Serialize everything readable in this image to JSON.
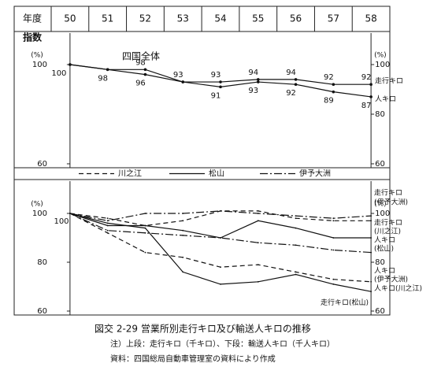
{
  "header": {
    "corner": "年度",
    "index_label": "指数"
  },
  "chart_data": [
    {
      "type": "line",
      "annotation": "四国全体",
      "unit_label": "(%)",
      "categories": [
        "50",
        "51",
        "52",
        "53",
        "54",
        "55",
        "56",
        "57",
        "58"
      ],
      "ylim": [
        60,
        100
      ],
      "yticks": [
        60,
        100
      ],
      "y2lim": [
        60,
        100
      ],
      "y2ticks": [
        60,
        80,
        100
      ],
      "series": [
        {
          "name": "走行キロ",
          "color": "#111111",
          "values": [
            100,
            98,
            98,
            93,
            93,
            94,
            94,
            92,
            92
          ],
          "labeled": [
            false,
            false,
            true,
            true,
            true,
            true,
            true,
            true,
            true
          ]
        },
        {
          "name": "人キロ",
          "color": "#111111",
          "values": [
            100,
            98,
            96,
            93,
            91,
            93,
            92,
            89,
            87
          ],
          "labeled": [
            true,
            true,
            true,
            false,
            true,
            true,
            true,
            true,
            true
          ]
        }
      ]
    },
    {
      "type": "line",
      "unit_label": "(%)",
      "ylim": [
        60,
        100
      ],
      "yticks": [
        60,
        80,
        100
      ],
      "y2lim": [
        60,
        100
      ],
      "y2ticks": [
        60,
        80,
        100
      ],
      "legend": [
        {
          "name": "川之江",
          "dash": "6,4"
        },
        {
          "name": "松山",
          "dash": "none"
        },
        {
          "name": "伊予大洲",
          "dash": "10,3,2,3"
        }
      ],
      "series": [
        {
          "name": "走行キロ",
          "note": "(伊予大洲)",
          "style": 2,
          "color": "#111111",
          "values": [
            100,
            97,
            100,
            100,
            101,
            100,
            99,
            98,
            99
          ]
        },
        {
          "name": "走行キロ",
          "note": "(川之江)",
          "style": 0,
          "color": "#111111",
          "values": [
            100,
            98,
            95,
            97,
            101,
            101,
            98,
            97,
            97
          ]
        },
        {
          "name": "人キロ",
          "note": "(松山)",
          "style": 1,
          "color": "#111111",
          "values": [
            100,
            95,
            95,
            93,
            90,
            97,
            94,
            90,
            90
          ]
        },
        {
          "name": "人キロ",
          "note": "(伊予大洲)",
          "style": 2,
          "color": "#111111",
          "values": [
            100,
            93,
            92,
            91,
            90,
            88,
            87,
            85,
            84
          ]
        },
        {
          "name": "人キロ",
          "note": "(川之江)",
          "style": 0,
          "color": "#111111",
          "values": [
            100,
            92,
            84,
            82,
            78,
            79,
            76,
            73,
            72
          ]
        },
        {
          "name": "走行キロ",
          "note": "(松山)",
          "style": 1,
          "color": "#111111",
          "values": [
            100,
            96,
            94,
            76,
            71,
            72,
            75,
            71,
            68
          ]
        }
      ]
    }
  ],
  "caption": {
    "title": "図交 2-29 営業所別走行キロ及び輸送人キロの推移",
    "note": "注）上段：走行キロ（千キロ）、下段：輸送人キロ（千人キロ）",
    "source": "資料：四国総局自動車管理室の資料により作成"
  }
}
